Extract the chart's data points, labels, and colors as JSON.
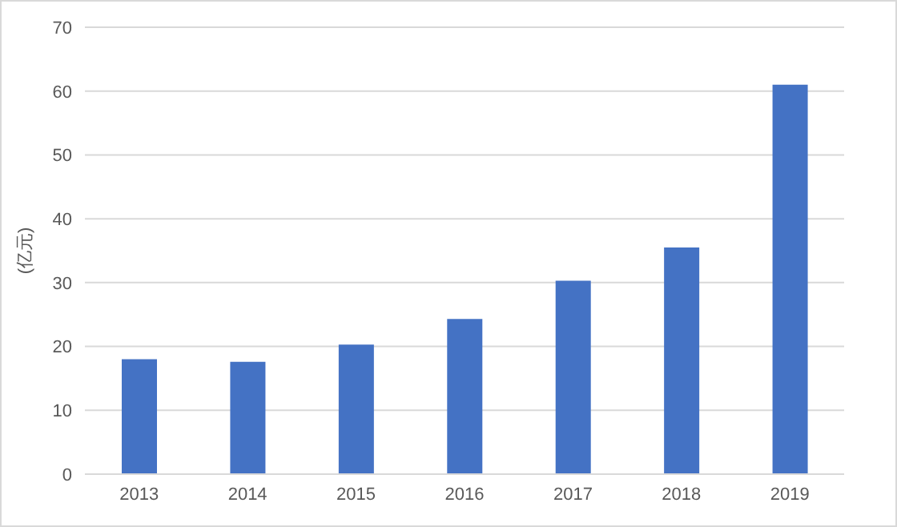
{
  "chart_data": {
    "type": "bar",
    "ylabel": "(亿元)",
    "categories": [
      "2013",
      "2014",
      "2015",
      "2016",
      "2017",
      "2018",
      "2019"
    ],
    "values": [
      18.0,
      17.6,
      20.3,
      24.3,
      30.3,
      35.5,
      61.0
    ],
    "color": "#4472c4",
    "ylim": [
      0,
      70
    ],
    "yticks": [
      0,
      10,
      20,
      30,
      40,
      50,
      60,
      70
    ],
    "grid": "y",
    "legend": false
  }
}
